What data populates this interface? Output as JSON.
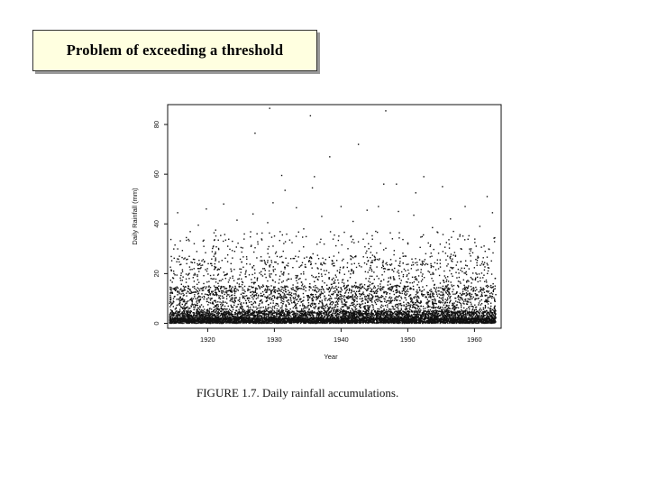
{
  "slide": {
    "title": "Problem of exceeding a threshold",
    "caption": "FIGURE 1.7. Daily rainfall accumulations."
  },
  "chart_data": {
    "type": "scatter",
    "title": "",
    "xlabel": "Year",
    "ylabel": "Daily Rainfall (mm)",
    "xlim": [
      1914,
      1964
    ],
    "ylim": [
      -2,
      88
    ],
    "xticks": [
      1920,
      1930,
      1940,
      1950,
      1960
    ],
    "yticks": [
      0,
      20,
      40,
      60,
      80
    ],
    "grid": false,
    "legend": "none",
    "series": [
      {
        "points": [
          [
            1929.3,
            86.5
          ],
          [
            1946.7,
            85.5
          ],
          [
            1935.4,
            83.5
          ],
          [
            1927.1,
            76.5
          ],
          [
            1942.6,
            72.0
          ],
          [
            1938.3,
            67.0
          ],
          [
            1931.1,
            59.5
          ],
          [
            1936.0,
            59.0
          ],
          [
            1952.4,
            59.0
          ],
          [
            1946.4,
            56.0
          ],
          [
            1948.3,
            56.0
          ],
          [
            1955.2,
            55.0
          ],
          [
            1935.7,
            54.5
          ],
          [
            1931.6,
            53.5
          ],
          [
            1951.2,
            52.5
          ],
          [
            1961.9,
            51.0
          ],
          [
            1929.8,
            48.5
          ],
          [
            1922.4,
            48.0
          ],
          [
            1940.0,
            47.0
          ],
          [
            1945.6,
            47.0
          ],
          [
            1958.6,
            47.0
          ],
          [
            1933.3,
            46.5
          ],
          [
            1919.8,
            46.0
          ],
          [
            1943.9,
            45.5
          ],
          [
            1948.6,
            45.0
          ],
          [
            1915.5,
            44.5
          ],
          [
            1962.7,
            44.5
          ],
          [
            1926.8,
            44.0
          ],
          [
            1950.9,
            43.5
          ],
          [
            1937.1,
            43.0
          ],
          [
            1956.4,
            42.0
          ],
          [
            1924.4,
            41.5
          ],
          [
            1941.8,
            41.0
          ],
          [
            1929.0,
            40.5
          ],
          [
            1918.6,
            39.5
          ],
          [
            1960.8,
            39.0
          ],
          [
            1953.7,
            38.5
          ],
          [
            1934.4,
            38.0
          ],
          [
            1921.2,
            37.5
          ],
          [
            1945.2,
            37.0
          ],
          [
            1927.4,
            36.0
          ],
          [
            1939.0,
            35.5
          ],
          [
            1957.8,
            35.0
          ],
          [
            1916.8,
            34.5
          ],
          [
            1947.7,
            34.0
          ],
          [
            1932.3,
            33.5
          ],
          [
            1923.7,
            33.0
          ],
          [
            1955.8,
            32.5
          ],
          [
            1944.1,
            32.0
          ],
          [
            1915.1,
            31.5
          ]
        ]
      }
    ]
  }
}
